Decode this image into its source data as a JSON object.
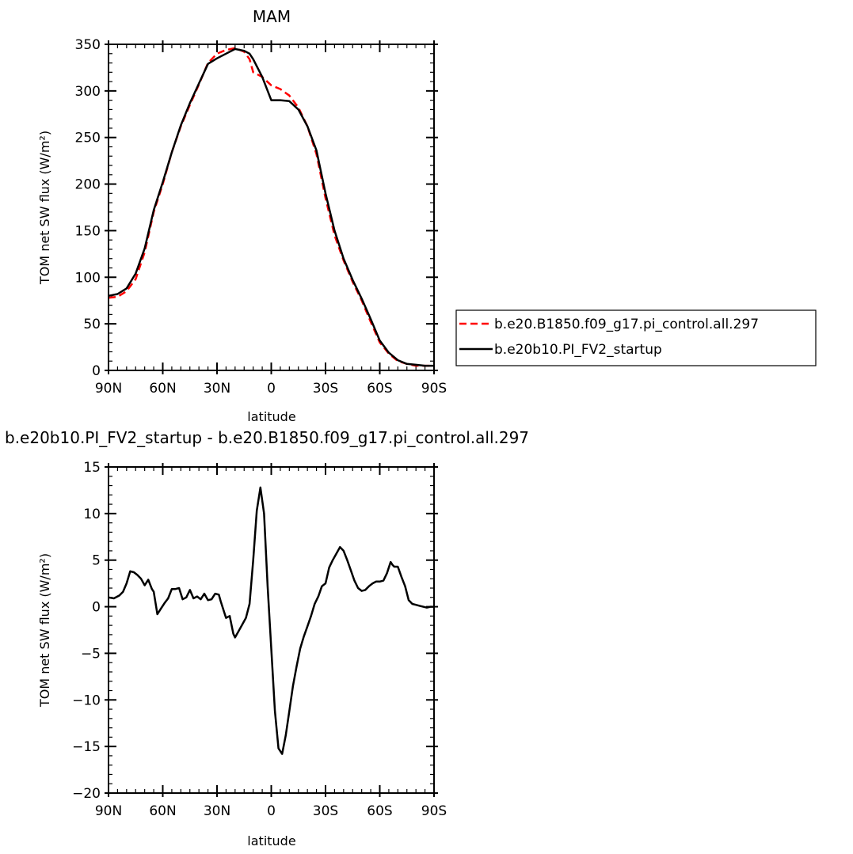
{
  "chart_data": [
    {
      "type": "line",
      "title": "MAM",
      "xlabel": "latitude",
      "ylabel": "TOM net SW flux (W/m²)",
      "xlim": [
        90,
        -90
      ],
      "ylim": [
        0,
        350
      ],
      "xticks": [
        90,
        60,
        30,
        0,
        -30,
        -60,
        -90
      ],
      "xtick_labels": [
        "90N",
        "60N",
        "30N",
        "0",
        "30S",
        "60S",
        "90S"
      ],
      "yticks": [
        0,
        50,
        100,
        150,
        200,
        250,
        300,
        350
      ],
      "ytick_labels": [
        "0",
        "50",
        "100",
        "150",
        "200",
        "250",
        "300",
        "350"
      ],
      "legend_position": "right",
      "series": [
        {
          "name": "b.e20.B1850.f09_g17.pi_control.all.297",
          "color": "#ff0000",
          "dash": "dashed",
          "x": [
            90,
            85,
            80,
            75,
            70,
            65,
            60,
            55,
            50,
            45,
            40,
            35,
            30,
            25,
            20,
            15,
            12,
            10,
            5,
            0,
            -5,
            -10,
            -15,
            -20,
            -25,
            -30,
            -35,
            -40,
            -45,
            -50,
            -55,
            -60,
            -65,
            -70,
            -75,
            -80,
            -85,
            -90
          ],
          "y": [
            78,
            79,
            85,
            98,
            127,
            170,
            200,
            234,
            262,
            285,
            307,
            330,
            340,
            344,
            346,
            342,
            334,
            320,
            315,
            306,
            302,
            295,
            282,
            262,
            232,
            185,
            145,
            118,
            95,
            75,
            52,
            30,
            18,
            10,
            7,
            5,
            5,
            5
          ]
        },
        {
          "name": "b.e20b10.PI_FV2_startup",
          "color": "#000000",
          "dash": "solid",
          "x": [
            90,
            85,
            80,
            75,
            70,
            65,
            60,
            55,
            50,
            45,
            40,
            35,
            30,
            25,
            20,
            15,
            12,
            10,
            5,
            0,
            -5,
            -10,
            -15,
            -20,
            -25,
            -30,
            -35,
            -40,
            -45,
            -50,
            -55,
            -60,
            -65,
            -70,
            -75,
            -80,
            -85,
            -90
          ],
          "y": [
            80,
            82,
            88,
            104,
            131,
            172,
            202,
            234,
            263,
            287,
            308,
            329,
            335,
            340,
            345,
            343,
            340,
            334,
            315,
            290,
            290,
            289,
            280,
            262,
            236,
            190,
            150,
            120,
            97,
            77,
            55,
            32,
            19,
            11,
            7,
            6,
            5,
            5
          ]
        }
      ]
    },
    {
      "type": "line",
      "title": "b.e20b10.PI_FV2_startup - b.e20.B1850.f09_g17.pi_control.all.297",
      "xlabel": "latitude",
      "ylabel": "TOM net SW flux (W/m²)",
      "xlim": [
        90,
        -90
      ],
      "ylim": [
        -20,
        15
      ],
      "xticks": [
        90,
        60,
        30,
        0,
        -30,
        -60,
        -90
      ],
      "xtick_labels": [
        "90N",
        "60N",
        "30N",
        "0",
        "30S",
        "60S",
        "90S"
      ],
      "yticks": [
        -20,
        -15,
        -10,
        -5,
        0,
        5,
        10,
        15
      ],
      "ytick_labels": [
        "−20",
        "−15",
        "−10",
        "−5",
        "0",
        "5",
        "10",
        "15"
      ],
      "series": [
        {
          "color": "#000000",
          "dash": "solid",
          "x": [
            90,
            87,
            84,
            82,
            80,
            78,
            76,
            74,
            72,
            70,
            68,
            66,
            65,
            63,
            61,
            59,
            57,
            55,
            53,
            51,
            49,
            47,
            45,
            43,
            41,
            39,
            37,
            35,
            33,
            31,
            29,
            28,
            26,
            25,
            23,
            21,
            20,
            18,
            16,
            14,
            12,
            10,
            8,
            6,
            4,
            2,
            0,
            -2,
            -4,
            -6,
            -8,
            -10,
            -12,
            -14,
            -16,
            -18,
            -20,
            -22,
            -24,
            -26,
            -28,
            -30,
            -32,
            -34,
            -36,
            -38,
            -40,
            -42,
            -44,
            -46,
            -48,
            -50,
            -52,
            -54,
            -56,
            -58,
            -60,
            -62,
            -64,
            -66,
            -67,
            -68,
            -70,
            -72,
            -74,
            -76,
            -78,
            -80,
            -82,
            -84,
            -86,
            -88,
            -90
          ],
          "y": [
            1.0,
            0.9,
            1.2,
            1.6,
            2.5,
            3.8,
            3.7,
            3.4,
            3.0,
            2.3,
            2.9,
            1.9,
            1.6,
            -0.8,
            -0.2,
            0.4,
            0.9,
            1.9,
            1.9,
            2.0,
            0.8,
            1.0,
            1.8,
            0.9,
            1.1,
            0.8,
            1.4,
            0.7,
            0.8,
            1.4,
            1.3,
            0.6,
            -0.6,
            -1.2,
            -1.0,
            -2.9,
            -3.3,
            -2.6,
            -1.9,
            -1.2,
            0.3,
            5.0,
            10.3,
            12.8,
            10.0,
            2.2,
            -4.5,
            -11.2,
            -15.2,
            -15.8,
            -13.8,
            -11.2,
            -8.5,
            -6.4,
            -4.5,
            -3.2,
            -2.1,
            -1.0,
            0.3,
            1.1,
            2.2,
            2.5,
            4.2,
            5.0,
            5.7,
            6.4,
            6.0,
            5.0,
            3.9,
            2.8,
            2.0,
            1.7,
            1.8,
            2.2,
            2.5,
            2.7,
            2.7,
            2.8,
            3.6,
            4.8,
            4.5,
            4.3,
            4.3,
            3.2,
            2.2,
            0.7,
            0.3,
            0.2,
            0.1,
            0.0,
            -0.1,
            0.0,
            0.0
          ]
        }
      ]
    }
  ]
}
